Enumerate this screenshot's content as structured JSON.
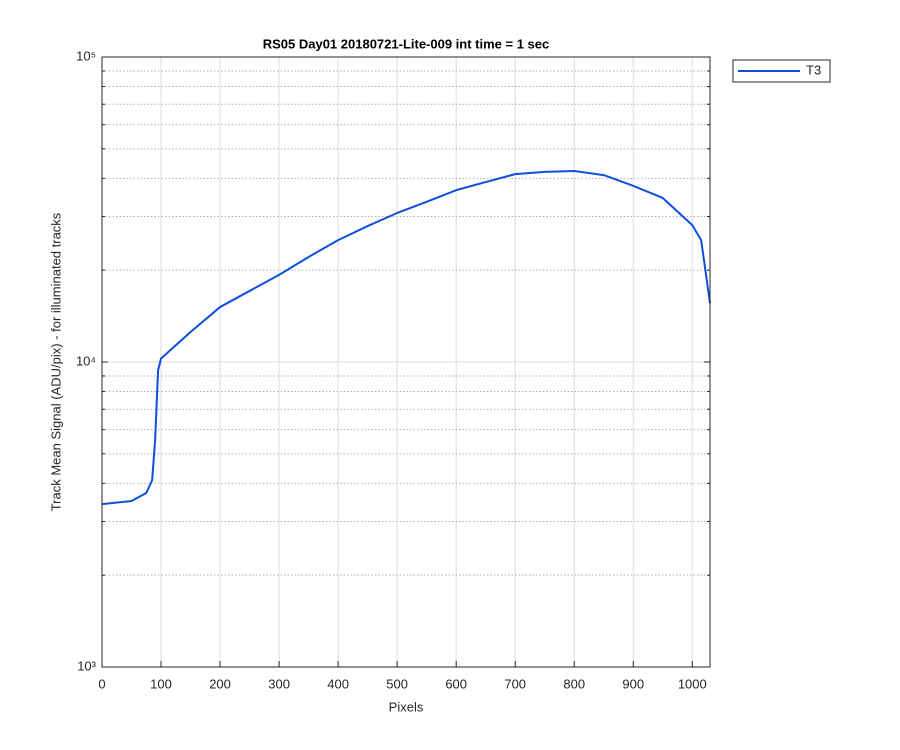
{
  "chart_data": {
    "type": "line",
    "title": "RS05 Day01 20180721-Lite-009 int time = 1 sec",
    "x_label": "Pixels",
    "y_label": "Track Mean Signal (ADU/pix) - for illuminated tracks",
    "x": [
      0,
      50,
      75,
      85,
      90,
      95,
      100,
      150,
      200,
      250,
      300,
      350,
      400,
      450,
      500,
      550,
      600,
      650,
      700,
      750,
      800,
      850,
      900,
      950,
      1000,
      1015,
      1030
    ],
    "series": [
      {
        "name": "T3",
        "color": "#0f4fe0",
        "values": [
          3420,
          3500,
          3720,
          4100,
          5550,
          9400,
          10270,
          12540,
          15140,
          17100,
          19300,
          22100,
          25100,
          27900,
          30800,
          33500,
          36600,
          38900,
          41300,
          42000,
          42300,
          41000,
          37800,
          34500,
          28100,
          25100,
          15600
        ]
      }
    ],
    "xlim": [
      0,
      1030
    ],
    "xticks": [
      0,
      100,
      200,
      300,
      400,
      500,
      600,
      700,
      800,
      900,
      1000
    ],
    "ylim": [
      1000,
      100000
    ],
    "y_log": true,
    "yticks": [
      {
        "value": 1000,
        "label": "10³"
      },
      {
        "value": 10000,
        "label": "10⁴"
      },
      {
        "value": 100000,
        "label": "10⁵"
      }
    ],
    "y_minor_grid": [
      2000,
      3000,
      4000,
      5000,
      6000,
      7000,
      8000,
      9000,
      20000,
      30000,
      40000,
      50000,
      60000,
      70000,
      80000,
      90000
    ],
    "grid": true,
    "legend": "outside-top-right"
  }
}
